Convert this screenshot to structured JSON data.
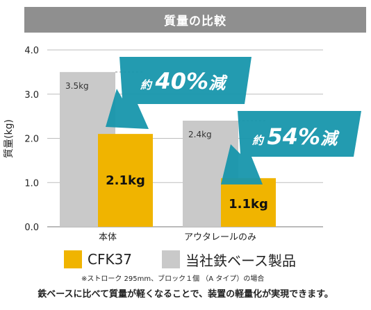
{
  "header": {
    "title": "質量の比較"
  },
  "chart_data": {
    "type": "bar",
    "ylabel": "質量(kg)",
    "ylim": [
      0,
      4.0
    ],
    "yticks": [
      "0.0",
      "1.0",
      "2.0",
      "3.0",
      "4.0"
    ],
    "grid": true,
    "categories": [
      "本体",
      "アウタレールのみ"
    ],
    "series": [
      {
        "name": "当社鉄ベース製品",
        "color": "#c9c9c9",
        "values": [
          3.5,
          2.4
        ],
        "labels": [
          "3.5kg",
          "2.4kg"
        ]
      },
      {
        "name": "CFK37",
        "color": "#f0b400",
        "values": [
          2.1,
          1.1
        ],
        "labels": [
          "2.1kg",
          "1.1kg"
        ]
      }
    ],
    "annotations": [
      {
        "prefix": "約",
        "value": "40%",
        "suffix": "減"
      },
      {
        "prefix": "約",
        "value": "54%",
        "suffix": "減"
      }
    ],
    "legend": [
      "CFK37",
      "当社鉄ベース製品"
    ],
    "legend_position": "bottom"
  },
  "footnote": "※ストローク 295mm、ブロック１個 （A タイプ）の場合",
  "summary": "鉄ベースに比べて質量が軽くなることで、装置の軽量化が実現できます。"
}
